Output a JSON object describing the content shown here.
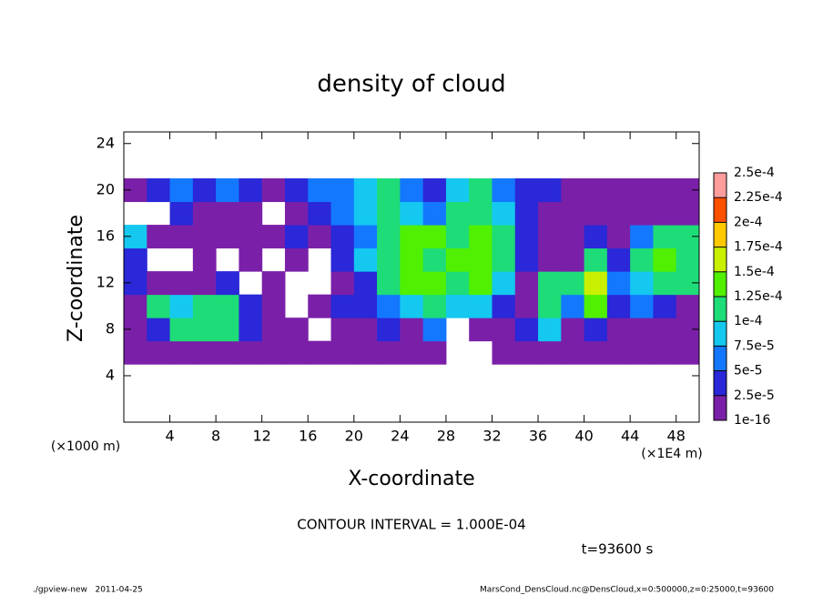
{
  "chart_data": {
    "type": "heatmap",
    "title": "density of cloud",
    "x_label": "X-coordinate",
    "y_label": "Z-coordinate",
    "x_unit": "(×1E4 m)",
    "y_unit": "(×1000 m)",
    "contour_note": "CONTOUR INTERVAL = 1.000E-04",
    "time_note": "t=93600 s",
    "footer_left": "./gpview-new   2011-04-25",
    "footer_right": "MarsCond_DensCloud.nc@DensCloud,x=0:500000,z=0:25000,t=93600",
    "xlim": [
      0,
      50
    ],
    "ylim": [
      0,
      25
    ],
    "xticks": [
      4,
      8,
      12,
      16,
      20,
      24,
      28,
      32,
      36,
      40,
      44,
      48
    ],
    "yticks": [
      4,
      8,
      12,
      16,
      20,
      24
    ],
    "x": [
      1,
      3,
      5,
      7,
      9,
      11,
      13,
      15,
      17,
      19,
      21,
      23,
      25,
      27,
      29,
      31,
      33,
      35,
      37,
      39,
      41,
      43,
      45,
      47,
      49
    ],
    "y": [
      6,
      8,
      10,
      12,
      14,
      16,
      18,
      20
    ],
    "z": [
      [
        1e-05,
        1e-05,
        1e-05,
        1e-05,
        1e-05,
        1e-05,
        1e-05,
        1e-05,
        1e-05,
        1e-05,
        1e-05,
        1e-05,
        1e-05,
        1e-05,
        null,
        null,
        1e-05,
        1e-05,
        1e-05,
        1e-05,
        1e-05,
        1e-05,
        1e-05,
        1e-05,
        1e-05
      ],
      [
        1e-05,
        4e-05,
        0.00011,
        0.00011,
        0.00012,
        4e-05,
        1e-05,
        1e-05,
        null,
        1e-05,
        1e-05,
        4e-05,
        1e-05,
        6e-05,
        null,
        1e-05,
        1e-05,
        4e-05,
        9e-05,
        1e-05,
        4e-05,
        1e-05,
        1e-05,
        1e-05,
        1e-05
      ],
      [
        1e-05,
        0.00011,
        9e-05,
        0.00012,
        0.00011,
        4e-05,
        1e-05,
        null,
        1e-05,
        4e-05,
        4e-05,
        6e-05,
        9e-05,
        0.00011,
        9e-05,
        9e-05,
        4e-05,
        1e-05,
        0.00011,
        6e-05,
        0.00013,
        4e-05,
        6e-05,
        4e-05,
        1e-05
      ],
      [
        4e-05,
        1e-05,
        1e-05,
        1e-05,
        4e-05,
        null,
        1e-05,
        null,
        null,
        1e-05,
        4e-05,
        0.00011,
        0.00013,
        0.00014,
        0.00012,
        0.00013,
        9e-05,
        1e-05,
        0.00011,
        0.00011,
        0.00015,
        6e-05,
        9e-05,
        0.00011,
        0.00011
      ],
      [
        4e-05,
        null,
        null,
        1e-05,
        null,
        1e-05,
        null,
        1e-05,
        null,
        4e-05,
        9e-05,
        0.00011,
        0.00014,
        0.00012,
        0.00013,
        0.00014,
        0.00011,
        4e-05,
        1e-05,
        1e-05,
        0.00012,
        4e-05,
        0.00011,
        0.00013,
        0.00011
      ],
      [
        9e-05,
        1e-05,
        1e-05,
        1e-05,
        1e-05,
        1e-05,
        1e-05,
        4e-05,
        1e-05,
        4e-05,
        6e-05,
        0.00011,
        0.00014,
        0.00013,
        0.00012,
        0.00014,
        0.00011,
        4e-05,
        1e-05,
        1e-05,
        4e-05,
        1e-05,
        6e-05,
        0.00012,
        0.00011
      ],
      [
        null,
        null,
        4e-05,
        1e-05,
        1e-05,
        1e-05,
        null,
        1e-05,
        4e-05,
        6e-05,
        9e-05,
        0.00011,
        9e-05,
        6e-05,
        0.00011,
        0.00012,
        9e-05,
        4e-05,
        1e-05,
        1e-05,
        1e-05,
        1e-05,
        1e-05,
        1e-05,
        1e-05
      ],
      [
        1e-05,
        4e-05,
        6e-05,
        4e-05,
        6e-05,
        4e-05,
        1e-05,
        4e-05,
        6e-05,
        6e-05,
        9e-05,
        0.00011,
        6e-05,
        4e-05,
        9e-05,
        0.00011,
        6e-05,
        4e-05,
        4e-05,
        1e-05,
        1e-05,
        1e-05,
        1e-05,
        1e-05,
        1e-05
      ]
    ],
    "levels": [
      1e-16,
      {
        "value": 2.5e-05,
        "label": "2.5e-5"
      },
      {
        "value": 5e-05,
        "label": "5e-5"
      },
      {
        "value": 7.5e-05,
        "label": "7.5e-5"
      },
      {
        "value": 0.0001,
        "label": "1e-4"
      },
      {
        "value": 0.000125,
        "label": "1.25e-4"
      },
      {
        "value": 0.00015,
        "label": "1.5e-4"
      },
      {
        "value": 0.000175,
        "label": "1.75e-4"
      },
      {
        "value": 0.0002,
        "label": "2e-4"
      },
      {
        "value": 0.000225,
        "label": "2.25e-4"
      },
      {
        "value": 0.00025,
        "label": "2.5e-4"
      }
    ],
    "colors": [
      "#7a20a8",
      "#2a28d8",
      "#1478ff",
      "#14c8f0",
      "#1edc78",
      "#50f000",
      "#c8f000",
      "#ffc800",
      "#ff5000",
      "#ff9c9c"
    ]
  }
}
